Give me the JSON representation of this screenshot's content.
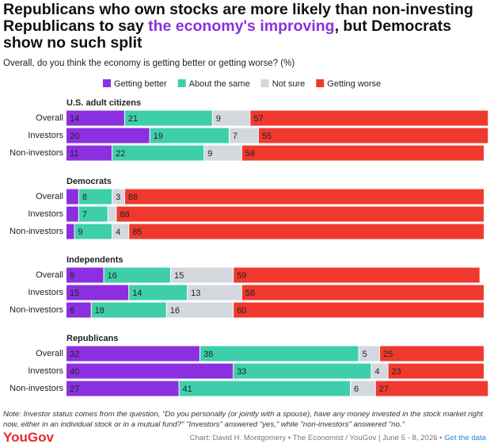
{
  "title": {
    "before": "Republicans who own stocks are more likely than non-investing Republicans to say ",
    "highlight": "the economy's improving",
    "after": ", but Democrats show no such split"
  },
  "subtitle": "Overall, do you think the economy is getting better or getting worse? (%)",
  "note": "Note: Investor status comes from the question, \"Do you personally (or jointly with a spouse), have any money invested in the stock market right now, either in an individual stock or in a mutual fund?\" \"Investors\" answered \"yes,\" while \"non-investors\" answered \"no.\"",
  "logo": "YouGov",
  "source": "Chart: David H. Montgomery • The Economist / YouGov | June 5 - 8, 2026 •",
  "link": "Get the data",
  "chart_data": [
    {
      "type": "bar",
      "orientation": "horizontal",
      "stacked": true,
      "title": "U.S. adult citizens",
      "xlim": [
        0,
        100
      ],
      "categories": [
        "Overall",
        "Investors",
        "Non-investors"
      ],
      "series": [
        {
          "name": "Getting better",
          "color": "#8b2fe0",
          "values": [
            14,
            20,
            11
          ]
        },
        {
          "name": "About the same",
          "color": "#3ecfaa",
          "values": [
            21,
            19,
            22
          ]
        },
        {
          "name": "Not sure",
          "color": "#d4d7dd",
          "values": [
            9,
            7,
            9
          ]
        },
        {
          "name": "Getting worse",
          "color": "#f0392e",
          "values": [
            57,
            55,
            58
          ]
        }
      ]
    },
    {
      "type": "bar",
      "orientation": "horizontal",
      "stacked": true,
      "title": "Democrats",
      "xlim": [
        0,
        100
      ],
      "categories": [
        "Overall",
        "Investors",
        "Non-investors"
      ],
      "series": [
        {
          "name": "Getting better",
          "color": "#8b2fe0",
          "values": [
            3,
            3,
            2
          ],
          "value_labels": [
            null,
            null,
            null
          ]
        },
        {
          "name": "About the same",
          "color": "#3ecfaa",
          "values": [
            8,
            7,
            9
          ]
        },
        {
          "name": "Not sure",
          "color": "#d4d7dd",
          "values": [
            3,
            2,
            4
          ],
          "value_labels": [
            "3",
            null,
            "4"
          ]
        },
        {
          "name": "Getting worse",
          "color": "#f0392e",
          "values": [
            86,
            88,
            85
          ]
        }
      ]
    },
    {
      "type": "bar",
      "orientation": "horizontal",
      "stacked": true,
      "title": "Independents",
      "xlim": [
        0,
        100
      ],
      "categories": [
        "Overall",
        "Investors",
        "Non-investors"
      ],
      "series": [
        {
          "name": "Getting better",
          "color": "#8b2fe0",
          "values": [
            9,
            15,
            6
          ]
        },
        {
          "name": "About the same",
          "color": "#3ecfaa",
          "values": [
            16,
            14,
            18
          ]
        },
        {
          "name": "Not sure",
          "color": "#d4d7dd",
          "values": [
            15,
            13,
            16
          ]
        },
        {
          "name": "Getting worse",
          "color": "#f0392e",
          "values": [
            59,
            58,
            60
          ]
        }
      ]
    },
    {
      "type": "bar",
      "orientation": "horizontal",
      "stacked": true,
      "title": "Republicans",
      "xlim": [
        0,
        100
      ],
      "categories": [
        "Overall",
        "Investors",
        "Non-investors"
      ],
      "series": [
        {
          "name": "Getting better",
          "color": "#8b2fe0",
          "values": [
            32,
            40,
            27
          ]
        },
        {
          "name": "About the same",
          "color": "#3ecfaa",
          "values": [
            38,
            33,
            41
          ]
        },
        {
          "name": "Not sure",
          "color": "#d4d7dd",
          "values": [
            5,
            4,
            6
          ]
        },
        {
          "name": "Getting worse",
          "color": "#f0392e",
          "values": [
            25,
            23,
            27
          ]
        }
      ]
    }
  ]
}
